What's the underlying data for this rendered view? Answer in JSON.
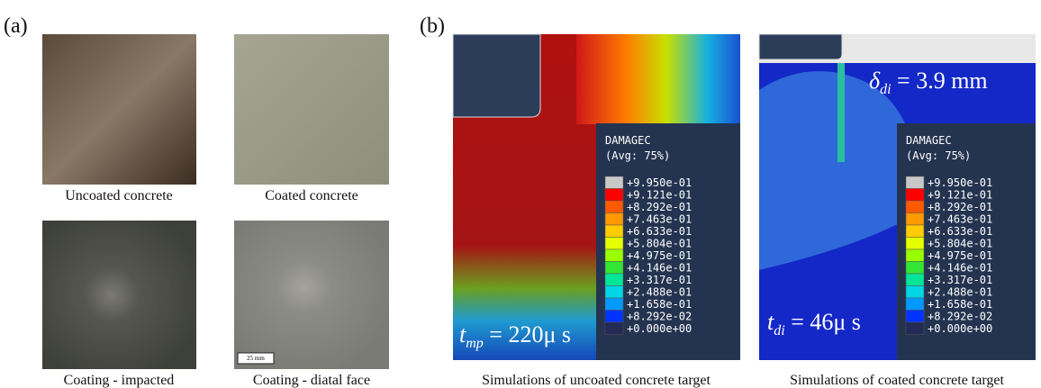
{
  "panel_a": {
    "label": "(a)",
    "photos": [
      {
        "caption": "Uncoated concrete"
      },
      {
        "caption": "Coated concrete"
      },
      {
        "caption": "Coating - impacted"
      },
      {
        "caption": "Coating - diatal face"
      }
    ],
    "scale_bar": "25 mm"
  },
  "panel_b": {
    "label": "(b)",
    "legend": {
      "title": "DAMAGEC",
      "subtitle": "(Avg: 75%)",
      "values": [
        "+9.950e-01",
        "+9.121e-01",
        "+8.292e-01",
        "+7.463e-01",
        "+6.633e-01",
        "+5.804e-01",
        "+4.975e-01",
        "+4.146e-01",
        "+3.317e-01",
        "+2.488e-01",
        "+1.658e-01",
        "+8.292e-02",
        "+0.000e+00"
      ]
    },
    "simulations": [
      {
        "caption": "Simulations of uncoated concrete target",
        "time": {
          "symbol": "t",
          "subscript": "mp",
          "rest": " = 220μ s"
        }
      },
      {
        "caption": "Simulations of coated concrete target",
        "time": {
          "symbol": "t",
          "subscript": "di",
          "rest": " = 46μ s"
        },
        "depth": {
          "symbol": "δ",
          "subscript": "di",
          "rest": " = 3.9 mm"
        }
      }
    ]
  }
}
